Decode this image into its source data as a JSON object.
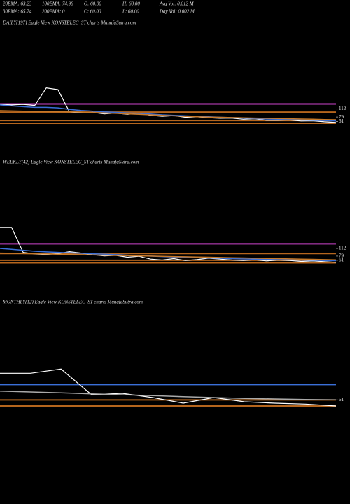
{
  "header": {
    "row1": [
      "20EMA: 63.23",
      "100EMA: 74.98",
      "O: 60.00",
      "H: 60.00",
      "Avg Vol: 0.012  M"
    ],
    "row2": [
      "30EMA: 65.74",
      "200EMA: 0",
      "C: 60.00",
      "L: 60.00",
      "Day Vol: 0.002  M"
    ]
  },
  "chart_data": [
    {
      "type": "line",
      "title": "DAILY(197) Eagle   View  KONSTELEC_ST charts MunafaSutra.com",
      "categories": [
        null,
        null,
        null,
        null,
        null,
        null,
        null,
        null,
        null,
        null,
        null,
        null,
        null,
        null,
        null,
        null,
        null,
        null,
        null,
        null,
        null,
        null,
        null,
        null,
        null,
        null,
        null,
        null,
        null,
        null
      ],
      "series": [
        {
          "color": "#ffffff",
          "values": [
            130,
            128,
            130,
            126,
            197,
            190,
            100,
            96,
            98,
            92,
            95,
            90,
            94,
            86,
            82,
            85,
            78,
            80,
            76,
            74,
            75,
            70,
            72,
            66,
            66,
            67,
            63,
            64,
            60,
            57
          ]
        },
        {
          "color": "#3a6fd8",
          "values": [
            128,
            124,
            121,
            118,
            118,
            116,
            110,
            106,
            103,
            100,
            98,
            96,
            94,
            91,
            88,
            86,
            84,
            82,
            80,
            78,
            77,
            75,
            73,
            71,
            70,
            69,
            67,
            66,
            65,
            63
          ]
        },
        {
          "color": "#c87a2a",
          "values": [
            105,
            104,
            103,
            102,
            102,
            101,
            100,
            99,
            97,
            95,
            94,
            92,
            90,
            88,
            86,
            84,
            82,
            80,
            79,
            78,
            77,
            76,
            75,
            74,
            73,
            72,
            71,
            70,
            69,
            68
          ]
        }
      ],
      "hlines": [
        {
          "value": 132,
          "color": "#cc44cc"
        },
        {
          "value": 99,
          "color": "#b5651d"
        },
        {
          "value": 65,
          "color": "#b5651d"
        },
        {
          "value": 54,
          "color": "#b5651d"
        }
      ],
      "ylim": [
        0,
        440
      ],
      "yticks": [
        112,
        79,
        61
      ]
    },
    {
      "type": "line",
      "title": "WEEKLY(42) Eagle   View  KONSTELEC_ST charts MunafaSutra.com",
      "categories": [
        null,
        null,
        null,
        null,
        null,
        null,
        null,
        null,
        null,
        null,
        null,
        null,
        null,
        null,
        null,
        null,
        null,
        null,
        null,
        null,
        null,
        null,
        null,
        null,
        null,
        null,
        null,
        null,
        null,
        null
      ],
      "series": [
        {
          "color": "#ffffff",
          "values": [
            203,
            203,
            95,
            88,
            86,
            90,
            98,
            92,
            85,
            80,
            82,
            74,
            78,
            66,
            62,
            68,
            60,
            64,
            70,
            66,
            62,
            60,
            63,
            58,
            62,
            60,
            56,
            58,
            55,
            52
          ]
        },
        {
          "color": "#3a6fd8",
          "values": [
            112,
            108,
            104,
            100,
            97,
            95,
            93,
            91,
            89,
            87,
            85,
            83,
            81,
            79,
            77,
            75,
            74,
            72,
            71,
            70,
            68,
            67,
            66,
            65,
            64,
            63,
            62,
            61,
            60,
            59
          ]
        },
        {
          "color": "#c87a2a",
          "values": [
            92,
            91,
            90,
            89,
            88,
            87,
            86,
            85,
            84,
            83,
            82,
            81,
            80,
            79,
            78,
            77,
            76,
            75,
            74,
            73,
            72,
            71,
            70,
            69,
            68,
            67,
            66,
            65,
            64,
            63
          ]
        }
      ],
      "hlines": [
        {
          "value": 132,
          "color": "#cc44cc"
        },
        {
          "value": 90,
          "color": "#b5651d"
        },
        {
          "value": 61,
          "color": "#b5651d"
        },
        {
          "value": 50,
          "color": "#b5651d"
        }
      ],
      "ylim": [
        0,
        460
      ],
      "yticks": [
        112,
        79,
        61
      ]
    },
    {
      "type": "line",
      "title": "MONTHLY(12) Eagle   View  KONSTELEC_ST charts MunafaSutra.com",
      "categories": [
        null,
        null,
        null,
        null,
        null,
        null,
        null,
        null,
        null,
        null,
        null,
        null
      ],
      "series": [
        {
          "color": "#ffffff",
          "values": [
            118,
            118,
            127,
            72,
            75,
            66,
            54,
            66,
            57,
            54,
            52,
            48
          ]
        },
        {
          "color": "#aaaaaa",
          "values": [
            80,
            78,
            76,
            74,
            72,
            70,
            68,
            66,
            64,
            63,
            62,
            61
          ]
        }
      ],
      "hlines": [
        {
          "value": 94,
          "color": "#3a6fd8"
        },
        {
          "value": 61,
          "color": "#b5651d"
        },
        {
          "value": 48,
          "color": "#b5651d"
        }
      ],
      "ylim": [
        0,
        300
      ],
      "yticks": [
        61
      ]
    }
  ]
}
